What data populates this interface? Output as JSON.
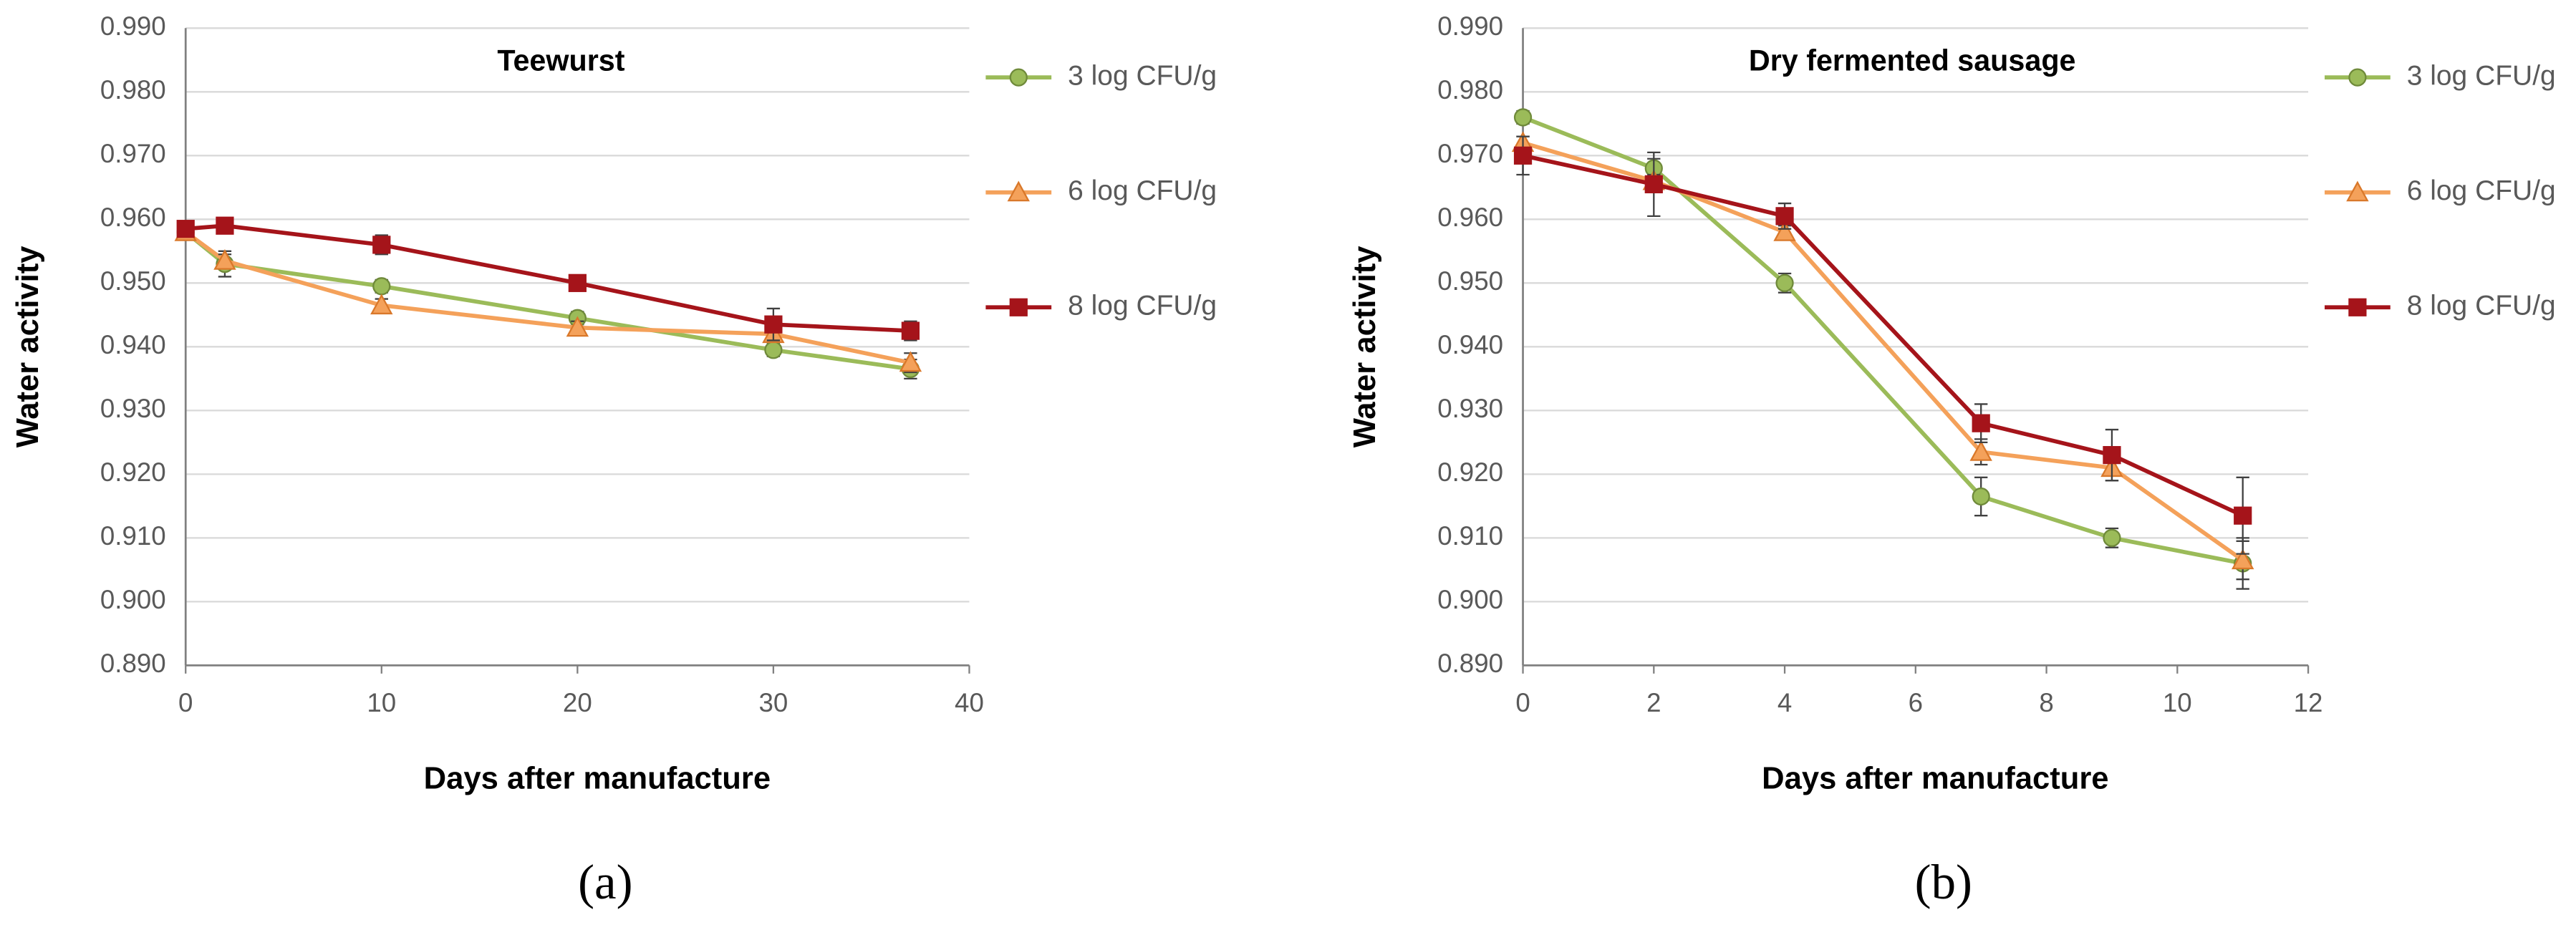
{
  "chart_data": [
    {
      "type": "line",
      "title": "Teewurst",
      "xlabel": "Days after manufacture",
      "ylabel": "Water activity",
      "panel_label": "(a)",
      "x": [
        0,
        2,
        10,
        20,
        30,
        37
      ],
      "series": [
        {
          "name": "3 log CFU/g",
          "color": "#9bbb59",
          "marker": "circle",
          "values": [
            0.958,
            0.953,
            0.9495,
            0.9445,
            0.9395,
            0.9365
          ],
          "errors": [
            0.001,
            0.002,
            0.001,
            0.001,
            0.001,
            0.0015
          ]
        },
        {
          "name": "6 log CFU/g",
          "color": "#f4a15a",
          "marker": "triangle",
          "values": [
            0.958,
            0.9535,
            0.9465,
            0.943,
            0.942,
            0.9375
          ],
          "errors": [
            0.001,
            0.001,
            0.001,
            0.001,
            0.001,
            0.0015
          ]
        },
        {
          "name": "8 log CFU/g",
          "color": "#a5141a",
          "marker": "square",
          "values": [
            0.9585,
            0.959,
            0.956,
            0.95,
            0.9435,
            0.9425
          ],
          "errors": [
            0.001,
            0.001,
            0.0015,
            0.001,
            0.0025,
            0.0015
          ]
        }
      ],
      "xlim": [
        0,
        40
      ],
      "xticks": [
        0,
        10,
        20,
        30,
        40
      ],
      "ylim": [
        0.89,
        0.99
      ],
      "yticks": [
        {
          "value": 0.89,
          "label": "0.890"
        },
        {
          "value": 0.9,
          "label": "0.900"
        },
        {
          "value": 0.91,
          "label": "0.910"
        },
        {
          "value": 0.92,
          "label": "0.920"
        },
        {
          "value": 0.93,
          "label": "0.930"
        },
        {
          "value": 0.94,
          "label": "0.940"
        },
        {
          "value": 0.95,
          "label": "0.950"
        },
        {
          "value": 0.96,
          "label": "0.960"
        },
        {
          "value": 0.97,
          "label": "0.970"
        },
        {
          "value": 0.98,
          "label": "0.980"
        },
        {
          "value": 0.99,
          "label": "0.990"
        }
      ],
      "grid": true,
      "legend": "right"
    },
    {
      "type": "line",
      "title": "Dry fermented sausage",
      "xlabel": "Days after manufacture",
      "ylabel": "Water activity",
      "panel_label": "(b)",
      "x": [
        0,
        2,
        4,
        7,
        9,
        11
      ],
      "series": [
        {
          "name": "3 log CFU/g",
          "color": "#9bbb59",
          "marker": "circle",
          "values": [
            0.976,
            0.968,
            0.95,
            0.9165,
            0.91,
            0.906
          ],
          "errors": [
            0.001,
            0.0015,
            0.0015,
            0.003,
            0.0015,
            0.004
          ]
        },
        {
          "name": "6 log CFU/g",
          "color": "#f4a15a",
          "marker": "triangle",
          "values": [
            0.972,
            0.966,
            0.958,
            0.9235,
            0.921,
            0.9065
          ],
          "errors": [
            0.001,
            0.001,
            0.001,
            0.002,
            0.002,
            0.003
          ]
        },
        {
          "name": "8 log CFU/g",
          "color": "#a5141a",
          "marker": "square",
          "values": [
            0.97,
            0.9655,
            0.9605,
            0.928,
            0.923,
            0.9135
          ],
          "errors": [
            0.003,
            0.005,
            0.002,
            0.003,
            0.004,
            0.006
          ]
        }
      ],
      "xlim": [
        0,
        12
      ],
      "xticks": [
        0,
        2,
        4,
        6,
        8,
        10,
        12
      ],
      "ylim": [
        0.89,
        0.99
      ],
      "yticks": [
        {
          "value": 0.89,
          "label": "0.890"
        },
        {
          "value": 0.9,
          "label": "0.900"
        },
        {
          "value": 0.91,
          "label": "0.910"
        },
        {
          "value": 0.92,
          "label": "0.920"
        },
        {
          "value": 0.93,
          "label": "0.930"
        },
        {
          "value": 0.94,
          "label": "0.940"
        },
        {
          "value": 0.95,
          "label": "0.950"
        },
        {
          "value": 0.96,
          "label": "0.960"
        },
        {
          "value": 0.97,
          "label": "0.970"
        },
        {
          "value": 0.98,
          "label": "0.980"
        },
        {
          "value": 0.99,
          "label": "0.990"
        }
      ],
      "grid": true,
      "legend": "right"
    }
  ]
}
